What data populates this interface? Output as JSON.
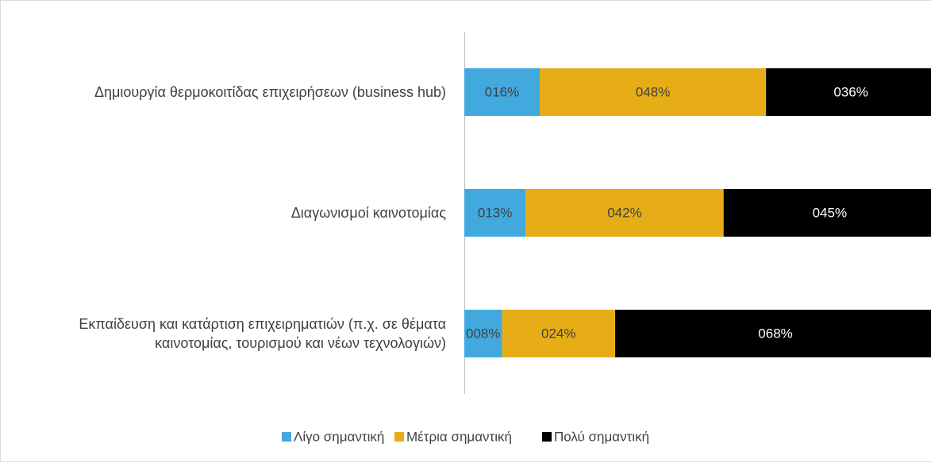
{
  "chart_data": {
    "type": "stacked-barh",
    "categories": [
      "Δημιουργία θερμοκοιτίδας επιχειρήσεων (business hub)",
      "Διαγωνισμοί καινοτομίας",
      "Εκπαίδευση και κατάρτιση επιχειρηματιών (π.χ. σε θέματα καινοτομίας, τουρισμού και νέων τεχνολογιών)"
    ],
    "series": [
      {
        "name": "Λίγο σημαντική",
        "color": "#41a9de",
        "values": [
          16,
          13,
          8
        ],
        "value_labels": [
          "016%",
          "013%",
          "008%"
        ]
      },
      {
        "name": "Μέτρια σημαντική",
        "color": "#e6ad17",
        "values": [
          48,
          42,
          24
        ],
        "value_labels": [
          "048%",
          "042%",
          "024%"
        ]
      },
      {
        "name": "Πολύ σημαντική",
        "color": "#000000",
        "values": [
          36,
          45,
          68
        ],
        "value_labels": [
          "036%",
          "045%",
          "068%"
        ]
      }
    ],
    "xlim": [
      0,
      100
    ],
    "legend": "bottom"
  }
}
